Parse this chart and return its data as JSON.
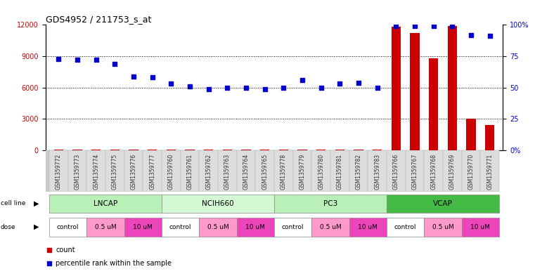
{
  "title": "GDS4952 / 211753_s_at",
  "samples": [
    "GSM1359772",
    "GSM1359773",
    "GSM1359774",
    "GSM1359775",
    "GSM1359776",
    "GSM1359777",
    "GSM1359760",
    "GSM1359761",
    "GSM1359762",
    "GSM1359763",
    "GSM1359764",
    "GSM1359765",
    "GSM1359778",
    "GSM1359779",
    "GSM1359780",
    "GSM1359781",
    "GSM1359782",
    "GSM1359783",
    "GSM1359766",
    "GSM1359767",
    "GSM1359768",
    "GSM1359769",
    "GSM1359770",
    "GSM1359771"
  ],
  "counts": [
    50,
    50,
    50,
    50,
    50,
    50,
    50,
    50,
    50,
    50,
    50,
    50,
    50,
    50,
    50,
    50,
    50,
    50,
    11800,
    11200,
    8800,
    11900,
    3000,
    2400
  ],
  "percentile_pct": [
    73,
    72,
    72,
    69,
    59,
    58,
    53,
    51,
    49,
    50,
    50,
    49,
    50,
    56,
    50,
    53,
    54,
    50,
    99,
    99,
    99,
    99,
    92,
    91
  ],
  "cell_lines": [
    {
      "name": "LNCAP",
      "start": 0,
      "end": 6,
      "color": "#b8f0b8"
    },
    {
      "name": "NCIH660",
      "start": 6,
      "end": 12,
      "color": "#d4f7d4"
    },
    {
      "name": "PC3",
      "start": 12,
      "end": 18,
      "color": "#b8f0b8"
    },
    {
      "name": "VCAP",
      "start": 18,
      "end": 24,
      "color": "#44bb44"
    }
  ],
  "doses": [
    {
      "label": "control",
      "start": 0,
      "end": 2,
      "color": "#ffffff"
    },
    {
      "label": "0.5 uM",
      "start": 2,
      "end": 4,
      "color": "#ff99cc"
    },
    {
      "label": "10 uM",
      "start": 4,
      "end": 6,
      "color": "#ee44bb"
    },
    {
      "label": "control",
      "start": 6,
      "end": 8,
      "color": "#ffffff"
    },
    {
      "label": "0.5 uM",
      "start": 8,
      "end": 10,
      "color": "#ff99cc"
    },
    {
      "label": "10 uM",
      "start": 10,
      "end": 12,
      "color": "#ee44bb"
    },
    {
      "label": "control",
      "start": 12,
      "end": 14,
      "color": "#ffffff"
    },
    {
      "label": "0.5 uM",
      "start": 14,
      "end": 16,
      "color": "#ff99cc"
    },
    {
      "label": "10 uM",
      "start": 16,
      "end": 18,
      "color": "#ee44bb"
    },
    {
      "label": "control",
      "start": 18,
      "end": 20,
      "color": "#ffffff"
    },
    {
      "label": "0.5 uM",
      "start": 20,
      "end": 22,
      "color": "#ff99cc"
    },
    {
      "label": "10 uM",
      "start": 22,
      "end": 24,
      "color": "#ee44bb"
    }
  ],
  "ylim_left": [
    0,
    12000
  ],
  "ylim_right": [
    0,
    100
  ],
  "yticks_left": [
    0,
    3000,
    6000,
    9000,
    12000
  ],
  "yticks_right": [
    0,
    25,
    50,
    75,
    100
  ],
  "ytick_labels_right": [
    "0",
    "25",
    "50",
    "75",
    "100%"
  ],
  "count_color": "#cc0000",
  "percentile_color": "#0000cc",
  "bar_width": 0.5,
  "bg_color": "#ffffff"
}
